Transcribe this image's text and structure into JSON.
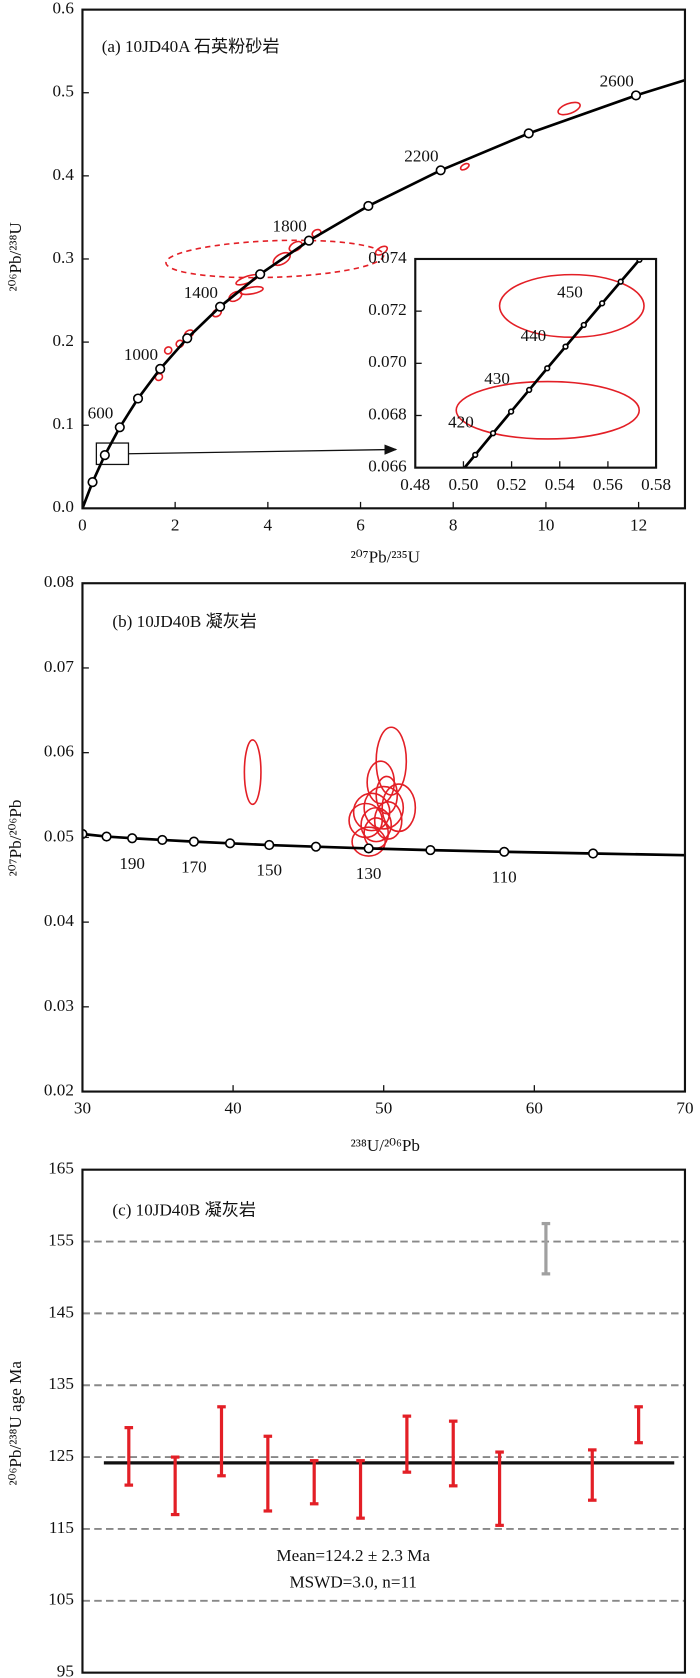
{
  "chart_data": [
    {
      "type": "concordia",
      "title": "(a) 10JD40A 石英粉砂岩",
      "x_label": "²⁰⁷Pb/²³⁵U",
      "y_label": "²⁰⁶Pb/²³⁸U",
      "xlim": [
        0,
        13
      ],
      "xticks": [
        0,
        2,
        4,
        6,
        8,
        10,
        12
      ],
      "ylim": [
        0,
        0.6
      ],
      "yticks": [
        {
          "value": 0,
          "label": "0.0"
        },
        0.1,
        0.2,
        0.3,
        0.4,
        0.5,
        0.6
      ],
      "curve_color": "#000000",
      "ellipse_color": "#e31f26",
      "line_start": [
        0,
        0
      ],
      "line_end": [
        13.28,
        0.52
      ],
      "points": {
        "x": [
          0.2177,
          0.4828,
          0.8056,
          1.1987,
          1.6774,
          2.2604,
          2.9702,
          3.8345,
          4.8868,
          6.1685,
          7.7292,
          9.6294,
          11.9436
        ],
        "y": [
          0.0315,
          0.064,
          0.0975,
          0.1321,
          0.1678,
          0.2046,
          0.2426,
          0.2817,
          0.3221,
          0.3638,
          0.4067,
          0.4511,
          0.4968
        ],
        "labels": [
          null,
          null,
          "600",
          null,
          "1000",
          null,
          "1400",
          null,
          "1800",
          null,
          "2200",
          null,
          "2600"
        ]
      },
      "ellipses": [
        {
          "x": 4.15,
          "y": 0.3,
          "rx": 2.35,
          "ry": 0.022,
          "angle": -2,
          "dashed": true
        },
        {
          "x": 10.5,
          "y": 0.481,
          "rx": 0.25,
          "ry": 0.006,
          "angle": -20
        },
        {
          "x": 8.25,
          "y": 0.411,
          "rx": 0.1,
          "ry": 0.003,
          "angle": -30
        },
        {
          "x": 6.45,
          "y": 0.31,
          "rx": 0.14,
          "ry": 0.004,
          "angle": -30
        },
        {
          "x": 5.05,
          "y": 0.331,
          "rx": 0.1,
          "ry": 0.004,
          "angle": -30
        },
        {
          "x": 4.6,
          "y": 0.315,
          "rx": 0.15,
          "ry": 0.005,
          "angle": -30
        },
        {
          "x": 4.3,
          "y": 0.3,
          "rx": 0.2,
          "ry": 0.006,
          "angle": -30
        },
        {
          "x": 3.65,
          "y": 0.262,
          "rx": 0.25,
          "ry": 0.004,
          "angle": -10
        },
        {
          "x": 3.55,
          "y": 0.275,
          "rx": 0.25,
          "ry": 0.004,
          "angle": -20
        },
        {
          "x": 3.3,
          "y": 0.255,
          "rx": 0.15,
          "ry": 0.005,
          "angle": -30
        },
        {
          "x": 2.9,
          "y": 0.235,
          "rx": 0.1,
          "ry": 0.004,
          "angle": -30
        },
        {
          "x": 2.3,
          "y": 0.21,
          "rx": 0.1,
          "ry": 0.004,
          "angle": -30
        },
        {
          "x": 2.1,
          "y": 0.198,
          "rx": 0.08,
          "ry": 0.004,
          "angle": -30
        },
        {
          "x": 1.85,
          "y": 0.19,
          "rx": 0.08,
          "ry": 0.004,
          "angle": -40
        },
        {
          "x": 1.65,
          "y": 0.158,
          "rx": 0.08,
          "ry": 0.004,
          "angle": -40
        }
      ],
      "inset": {
        "xlim": [
          0.48,
          0.58
        ],
        "xticks": [
          0.48,
          {
            "value": 0.5,
            "label": "0.50"
          },
          0.52,
          0.54,
          0.56,
          0.58
        ],
        "ylim": [
          0.066,
          0.074
        ],
        "yticks": [
          0.066,
          0.068,
          {
            "value": 0.07,
            "label": "0.070"
          },
          0.072,
          0.074
        ],
        "points": {
          "x": [
            0.4975,
            0.5049,
            0.5123,
            0.5198,
            0.5273,
            0.5348,
            0.5424,
            0.55,
            0.5576,
            0.5653,
            0.5731
          ],
          "y": [
            0.06567,
            0.06649,
            0.06732,
            0.06815,
            0.06898,
            0.06981,
            0.07064,
            0.07147,
            0.0723,
            0.07313,
            0.07397
          ],
          "labels": [
            null,
            null,
            "420",
            null,
            "430",
            null,
            "440",
            null,
            "450",
            null,
            null
          ]
        },
        "ellipses": [
          {
            "x": 0.545,
            "y": 0.0722,
            "rx": 0.03,
            "ry": 0.0012,
            "angle": 0
          },
          {
            "x": 0.535,
            "y": 0.0682,
            "rx": 0.038,
            "ry": 0.0011,
            "angle": 0
          }
        ]
      }
    },
    {
      "type": "concordia",
      "title": "(b) 10JD40B 凝灰岩",
      "x_label": "²³⁸U/²⁰⁶Pb",
      "y_label": "²⁰⁷Pb/²⁰⁶Pb",
      "xlim": [
        30,
        70
      ],
      "xticks": [
        30,
        40,
        50,
        60,
        70
      ],
      "ylim": [
        0.02,
        0.08
      ],
      "yticks": [
        0.02,
        0.03,
        0.04,
        0.05,
        0.06,
        0.07,
        0.08
      ],
      "curve_color": "#000000",
      "ellipse_color": "#e31f26",
      "line_end": [
        70,
        0.0479
      ],
      "points": {
        "x": [
          30.0,
          31.6,
          33.3,
          35.3,
          37.4,
          39.8,
          42.4,
          45.5,
          49.0,
          53.1,
          58.0,
          63.9
        ],
        "y": [
          0.0504,
          0.0501,
          0.0499,
          0.0497,
          0.0495,
          0.0493,
          0.0491,
          0.0489,
          0.0487,
          0.0485,
          0.0483,
          0.0481
        ],
        "labels": [
          null,
          null,
          "190",
          null,
          "170",
          null,
          "150",
          null,
          "130",
          null,
          "110",
          null
        ]
      },
      "ellipses": [
        {
          "x": 41.3,
          "y": 0.0577,
          "rx": 0.55,
          "ry": 0.0038,
          "angle": 0
        },
        {
          "x": 50.5,
          "y": 0.059,
          "rx": 1.0,
          "ry": 0.004,
          "angle": 0
        },
        {
          "x": 49.8,
          "y": 0.0565,
          "rx": 0.9,
          "ry": 0.0025,
          "angle": 0
        },
        {
          "x": 50.2,
          "y": 0.055,
          "rx": 0.7,
          "ry": 0.0022,
          "angle": 0
        },
        {
          "x": 51.0,
          "y": 0.0535,
          "rx": 1.1,
          "ry": 0.0028,
          "angle": 0
        },
        {
          "x": 50.0,
          "y": 0.0535,
          "rx": 1.3,
          "ry": 0.0025,
          "angle": 0
        },
        {
          "x": 49.2,
          "y": 0.053,
          "rx": 1.2,
          "ry": 0.0022,
          "angle": 0
        },
        {
          "x": 48.8,
          "y": 0.052,
          "rx": 1.1,
          "ry": 0.002,
          "angle": 0
        },
        {
          "x": 49.5,
          "y": 0.0515,
          "rx": 1.0,
          "ry": 0.002,
          "angle": 0
        },
        {
          "x": 50.3,
          "y": 0.052,
          "rx": 0.9,
          "ry": 0.0022,
          "angle": 0
        },
        {
          "x": 49.0,
          "y": 0.0495,
          "rx": 1.1,
          "ry": 0.0017,
          "angle": 0
        },
        {
          "x": 49.5,
          "y": 0.0505,
          "rx": 0.8,
          "ry": 0.0018,
          "angle": 0
        }
      ]
    },
    {
      "type": "errorbar",
      "title": "(c) 10JD40B 凝灰岩",
      "y_label": "²⁰⁶Pb/²³⁸U  age Ma",
      "ylim": [
        95,
        165
      ],
      "yticks": [
        95,
        105,
        115,
        125,
        135,
        145,
        155,
        165
      ],
      "grid": true,
      "categories": [
        null,
        null,
        null,
        null,
        null,
        null,
        null,
        null,
        null,
        null,
        null,
        null
      ],
      "values": [
        125.1,
        121,
        127.2,
        122.7,
        121.5,
        120.5,
        126.8,
        125.5,
        120.6,
        154,
        122.5,
        129.5
      ],
      "errors": [
        4,
        4,
        4.8,
        5.2,
        3,
        4,
        3.9,
        4.5,
        5.1,
        3.5,
        3.5,
        2.5
      ],
      "colors": [
        "#e31f26",
        "#e31f26",
        "#e31f26",
        "#e31f26",
        "#e31f26",
        "#e31f26",
        "#e31f26",
        "#e31f26",
        "#e31f26",
        "#a0a0a0",
        "#e31f26",
        "#e31f26"
      ],
      "mean": 124.2,
      "annotations": [
        "Mean=124.2 ± 2.3 Ma",
        "MSWD=3.0, n=11"
      ]
    }
  ]
}
